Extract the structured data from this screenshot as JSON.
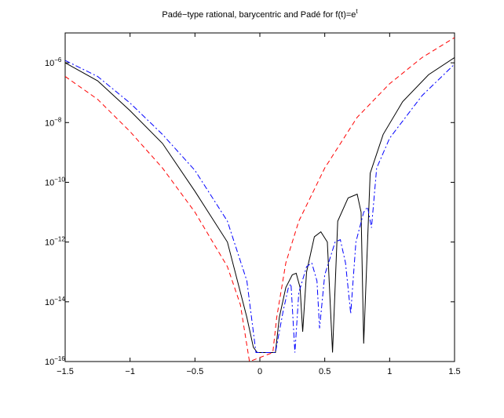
{
  "chart_data": {
    "type": "line",
    "title": "Padé−type rational, barycentric and Padé for f(t)=e",
    "title_superscript": "t",
    "log_y": true,
    "xlim": [
      -1.5,
      1.5
    ],
    "ylim": [
      1e-16,
      1e-05
    ],
    "xticks": [
      {
        "value": -1.5,
        "label": "−1.5"
      },
      {
        "value": -1,
        "label": "−1"
      },
      {
        "value": -0.5,
        "label": "−0.5"
      },
      0,
      0.5,
      1,
      1.5
    ],
    "yticks": [
      {
        "value": 1e-16,
        "label": "10^−16"
      },
      {
        "value": 1e-14,
        "label": "10^−14"
      },
      {
        "value": 1e-12,
        "label": "10^−12"
      },
      {
        "value": 1e-10,
        "label": "10^−10"
      },
      {
        "value": 1e-08,
        "label": "10^−8"
      },
      {
        "value": 1e-06,
        "label": "10^−6"
      }
    ],
    "series": [
      {
        "color": "#000000",
        "dash": "none",
        "x": [
          -1.5,
          -1.25,
          -1,
          -0.75,
          -0.5,
          -0.25,
          -0.1,
          -0.05,
          -0.02,
          0.12,
          0.15,
          0.2,
          0.25,
          0.28,
          0.31,
          0.33,
          0.36,
          0.42,
          0.47,
          0.52,
          0.56,
          0.6,
          0.68,
          0.75,
          0.78,
          0.8,
          0.85,
          0.95,
          1.1,
          1.3,
          1.5
        ],
        "values": [
          1e-06,
          2.5e-07,
          2.5e-08,
          2e-09,
          5e-11,
          1e-12,
          3e-15,
          3e-16,
          2e-16,
          2e-16,
          3e-15,
          3e-14,
          8e-14,
          9e-14,
          3e-14,
          1e-15,
          1e-13,
          1.5e-12,
          2.2e-12,
          1e-12,
          2e-16,
          5e-12,
          3e-11,
          4e-11,
          1e-11,
          4e-16,
          2e-10,
          4e-09,
          5e-08,
          4e-07,
          1.5e-06
        ]
      },
      {
        "color": "#ff0000",
        "dash": "6,4",
        "x": [
          -1.5,
          -1.25,
          -1,
          -0.75,
          -0.5,
          -0.25,
          -0.15,
          -0.08,
          0.1,
          0.13,
          0.2,
          0.3,
          0.5,
          0.75,
          1,
          1.25,
          1.5
        ],
        "values": [
          3.5e-07,
          6e-08,
          5e-09,
          3e-10,
          1e-11,
          1.5e-13,
          8e-15,
          1e-16,
          2e-16,
          3e-15,
          2e-13,
          5e-12,
          3e-10,
          1.5e-08,
          2e-07,
          1.5e-06,
          7e-06
        ]
      },
      {
        "color": "#0000ff",
        "dash": "7,3,2,3",
        "x": [
          -1.5,
          -1.25,
          -1,
          -0.75,
          -0.5,
          -0.25,
          -0.1,
          -0.03,
          0.12,
          0.18,
          0.22,
          0.24,
          0.27,
          0.3,
          0.36,
          0.4,
          0.44,
          0.46,
          0.5,
          0.58,
          0.62,
          0.66,
          0.7,
          0.74,
          0.8,
          0.83,
          0.86,
          0.9,
          1,
          1.25,
          1.5
        ],
        "values": [
          1.2e-06,
          3.5e-07,
          4.5e-08,
          4e-09,
          2.5e-10,
          5e-12,
          5e-14,
          2e-16,
          2e-16,
          5e-15,
          3e-14,
          4e-14,
          2e-16,
          2e-14,
          1.5e-13,
          2e-13,
          5e-14,
          1.3e-15,
          8e-14,
          1e-12,
          1.2e-12,
          2e-13,
          4e-15,
          1e-12,
          1e-11,
          1.5e-11,
          3e-12,
          3e-10,
          3e-09,
          8e-08,
          9e-07
        ]
      }
    ]
  }
}
